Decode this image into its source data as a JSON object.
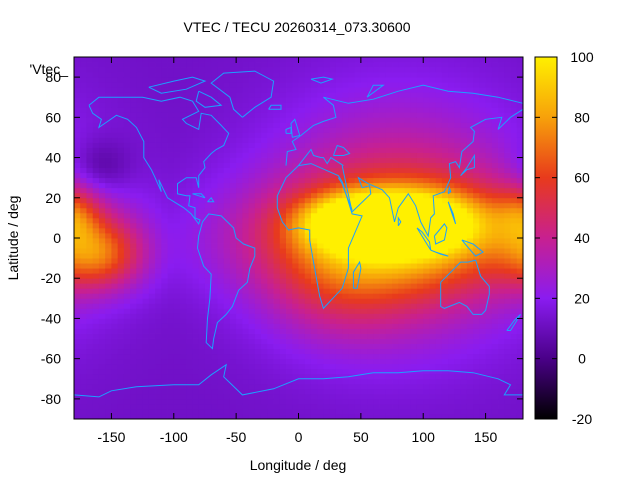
{
  "chart_data": {
    "type": "heatmap",
    "title": "VTEC / TECU 20260314_073.30600",
    "xlabel": "Longitude / deg",
    "ylabel": "Latitude / deg",
    "key_label": "'Vtec_",
    "xlim": [
      -180,
      180
    ],
    "ylim": [
      -90,
      90
    ],
    "x_ticks": [
      -150,
      -100,
      -50,
      0,
      50,
      100,
      150
    ],
    "y_ticks": [
      -80,
      -60,
      -40,
      -20,
      0,
      20,
      40,
      60,
      80
    ],
    "colorbar": {
      "range": [
        -20,
        100
      ],
      "ticks": [
        -20,
        0,
        20,
        40,
        60,
        80,
        100
      ],
      "palette": [
        "#000000",
        "#4a0088",
        "#8a1cf0",
        "#c82090",
        "#e83a1c",
        "#f7a10a",
        "#fff000"
      ]
    },
    "grid": false,
    "coastline_color": "#1ca0ff",
    "field_model": {
      "background_tecu": 12,
      "features": [
        {
          "lon": 50,
          "lat": 8,
          "amplitude": 58,
          "sigma_lon": 32,
          "sigma_lat": 9
        },
        {
          "lon": 95,
          "lat": 8,
          "amplitude": 55,
          "sigma_lon": 38,
          "sigma_lat": 10
        },
        {
          "lon": 75,
          "lat": 0,
          "amplitude": 45,
          "sigma_lon": 85,
          "sigma_lat": 20
        },
        {
          "lon": 80,
          "lat": 8,
          "amplitude": 38,
          "sigma_lon": 70,
          "sigma_lat": 40
        },
        {
          "lon": 30,
          "lat": -25,
          "amplitude": 15,
          "sigma_lon": 40,
          "sigma_lat": 20
        },
        {
          "lon": -160,
          "lat": -8,
          "amplitude": 42,
          "sigma_lon": 25,
          "sigma_lat": 12
        },
        {
          "lon": -180,
          "lat": 12,
          "amplitude": 25,
          "sigma_lon": 15,
          "sigma_lat": 10
        },
        {
          "lon": -160,
          "lat": 35,
          "amplitude": -14,
          "sigma_lon": 18,
          "sigma_lat": 10
        }
      ]
    }
  }
}
